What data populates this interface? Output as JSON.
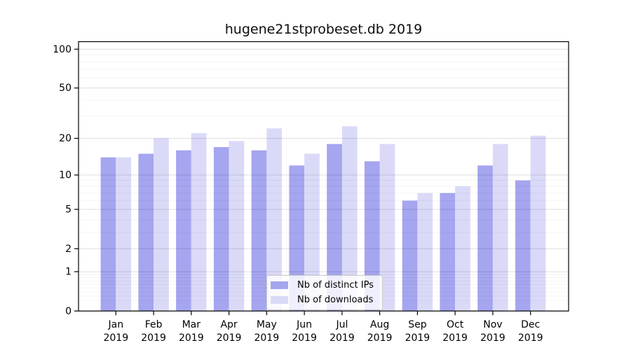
{
  "title": "hugene21stprobeset.db 2019",
  "chart_data": {
    "type": "bar",
    "title": "hugene21stprobeset.db 2019",
    "categories": [
      "Jan 2019",
      "Feb 2019",
      "Mar 2019",
      "Apr 2019",
      "May 2019",
      "Jun 2019",
      "Jul 2019",
      "Aug 2019",
      "Sep 2019",
      "Oct 2019",
      "Nov 2019",
      "Dec 2019"
    ],
    "month_labels": [
      "Jan",
      "Feb",
      "Mar",
      "Apr",
      "May",
      "Jun",
      "Jul",
      "Aug",
      "Sep",
      "Oct",
      "Nov",
      "Dec"
    ],
    "year_label": "2019",
    "series": [
      {
        "name": "Nb of distinct IPs",
        "color": "#a5a5f0",
        "values": [
          14,
          15,
          16,
          17,
          16,
          12,
          18,
          13,
          6,
          7,
          12,
          9
        ]
      },
      {
        "name": "Nb of downloads",
        "color": "#dadaf8",
        "values": [
          14,
          20,
          22,
          19,
          24,
          15,
          25,
          18,
          7,
          8,
          18,
          21
        ]
      }
    ],
    "yaxis": {
      "scale": "log10(1+x)",
      "ticks": [
        0,
        1,
        2,
        5,
        10,
        20,
        50,
        100
      ],
      "minor_gridlines": [
        0.2,
        0.3,
        0.4,
        0.5,
        0.6,
        0.7,
        0.8,
        0.9,
        3,
        4,
        6,
        7,
        8,
        9,
        30,
        40,
        60,
        70,
        80,
        90
      ],
      "ylim": [
        0,
        115
      ]
    },
    "xlabel": "",
    "ylabel": "",
    "grid": true,
    "legend_position": "lower-center",
    "colors": {
      "major_grid": "rgba(0,0,0,0.13)",
      "minor_grid": "rgba(0,0,0,0.05)",
      "axis": "#000000",
      "background": "#ffffff"
    }
  }
}
